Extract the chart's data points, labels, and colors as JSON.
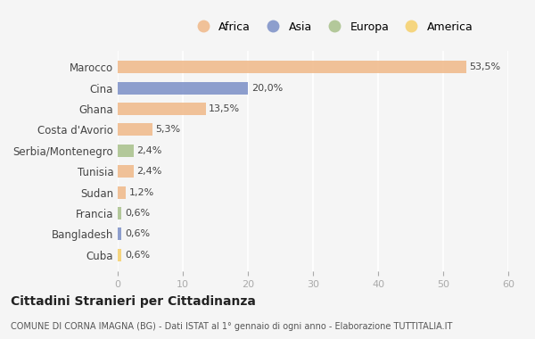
{
  "countries": [
    "Marocco",
    "Cina",
    "Ghana",
    "Costa d'Avorio",
    "Serbia/Montenegro",
    "Tunisia",
    "Sudan",
    "Francia",
    "Bangladesh",
    "Cuba"
  ],
  "values": [
    53.5,
    20.0,
    13.5,
    5.3,
    2.4,
    2.4,
    1.2,
    0.6,
    0.6,
    0.6
  ],
  "labels": [
    "53,5%",
    "20,0%",
    "13,5%",
    "5,3%",
    "2,4%",
    "2,4%",
    "1,2%",
    "0,6%",
    "0,6%",
    "0,6%"
  ],
  "colors": [
    "#f0b888",
    "#7b8fc7",
    "#f0b888",
    "#f0b888",
    "#a8c08a",
    "#f0b888",
    "#f0b888",
    "#a8c08a",
    "#7b8fc7",
    "#f5d06a"
  ],
  "legend": [
    {
      "label": "Africa",
      "color": "#f0b888"
    },
    {
      "label": "Asia",
      "color": "#7b8fc7"
    },
    {
      "label": "Europa",
      "color": "#a8c08a"
    },
    {
      "label": "America",
      "color": "#f5d06a"
    }
  ],
  "xlim": [
    0,
    60
  ],
  "xticks": [
    0,
    10,
    20,
    30,
    40,
    50,
    60
  ],
  "title": "Cittadini Stranieri per Cittadinanza",
  "subtitle": "COMUNE DI CORNA IMAGNA (BG) - Dati ISTAT al 1° gennaio di ogni anno - Elaborazione TUTTITALIA.IT",
  "background_color": "#f5f5f5",
  "bar_height": 0.6
}
